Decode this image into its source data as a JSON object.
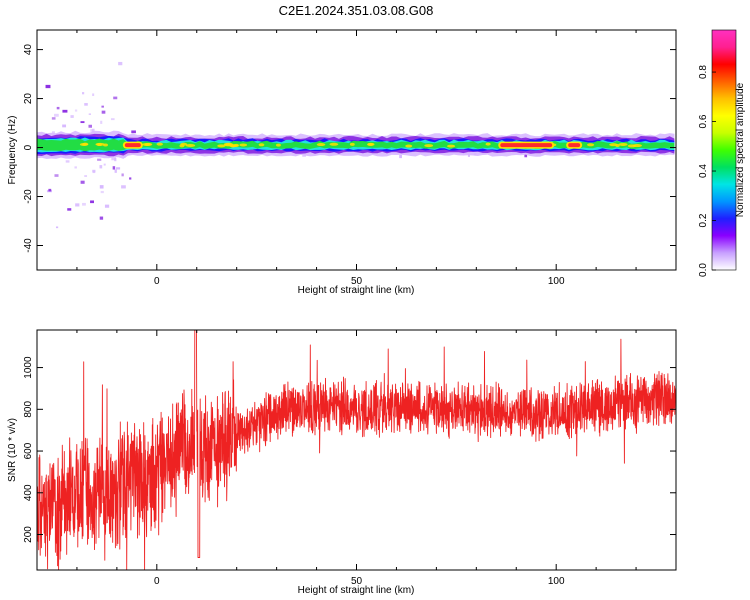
{
  "title": "C2E1.2024.351.03.08.G08",
  "colors": {
    "snr_line": "#ee2222",
    "ridge_core": "#ff2a2a",
    "ridge_mid": "#ffe000",
    "ridge_green": "#22dd44",
    "ridge_cyan": "#22e0e0",
    "ridge_blue": "#1a1aff",
    "ridge_purple": "#8a2be2",
    "ridge_lavender": "#d7b8ff"
  },
  "colorbar": {
    "label": "Normalized spectral amplitude",
    "ticks": [
      "0.0",
      "0.2",
      "0.4",
      "0.6",
      "0.8"
    ],
    "tick_values": [
      0.0,
      0.2,
      0.4,
      0.6,
      0.8
    ],
    "range": [
      0.0,
      0.97
    ],
    "colormap": [
      "#ffffff",
      "#c8a0ff",
      "#8a00ff",
      "#1f1fff",
      "#0096ff",
      "#00e5e5",
      "#00e060",
      "#40ff00",
      "#c8ff00",
      "#ffff00",
      "#ffc000",
      "#ff6000",
      "#ff0000",
      "#ff2090",
      "#ff30c0"
    ]
  },
  "chart_data": [
    {
      "type": "heatmap",
      "title": "C2E1.2024.351.03.08.G08",
      "xlabel": "Height of straight line (km)",
      "ylabel": "Frequency (Hz)",
      "xlim": [
        -30,
        130
      ],
      "ylim": [
        -50,
        48
      ],
      "xticks": [
        0,
        50,
        100
      ],
      "yticks": [
        -40,
        -20,
        0,
        20,
        40
      ],
      "grid": false,
      "ridge": {
        "center_hz": 1,
        "approx_width_hz": 6,
        "peak_segments_km": [
          [
            -8,
            -4
          ],
          [
            86,
            99
          ],
          [
            103,
            106
          ]
        ]
      }
    },
    {
      "type": "line",
      "xlabel": "Height of straight line (km)",
      "ylabel": "SNR (10 * v/v)",
      "xlim": [
        -30,
        130
      ],
      "ylim": [
        30,
        1180
      ],
      "xticks": [
        0,
        50,
        100
      ],
      "yticks": [
        200,
        400,
        600,
        800,
        1000
      ],
      "grid": false,
      "series": [
        {
          "trend_x": [
            -30,
            -20,
            -10,
            0,
            5,
            10,
            15,
            20,
            30,
            40,
            60,
            80,
            100,
            110,
            120,
            130
          ],
          "trend_y": [
            300,
            380,
            420,
            500,
            620,
            620,
            600,
            680,
            790,
            810,
            810,
            790,
            780,
            810,
            840,
            860
          ]
        }
      ]
    }
  ]
}
